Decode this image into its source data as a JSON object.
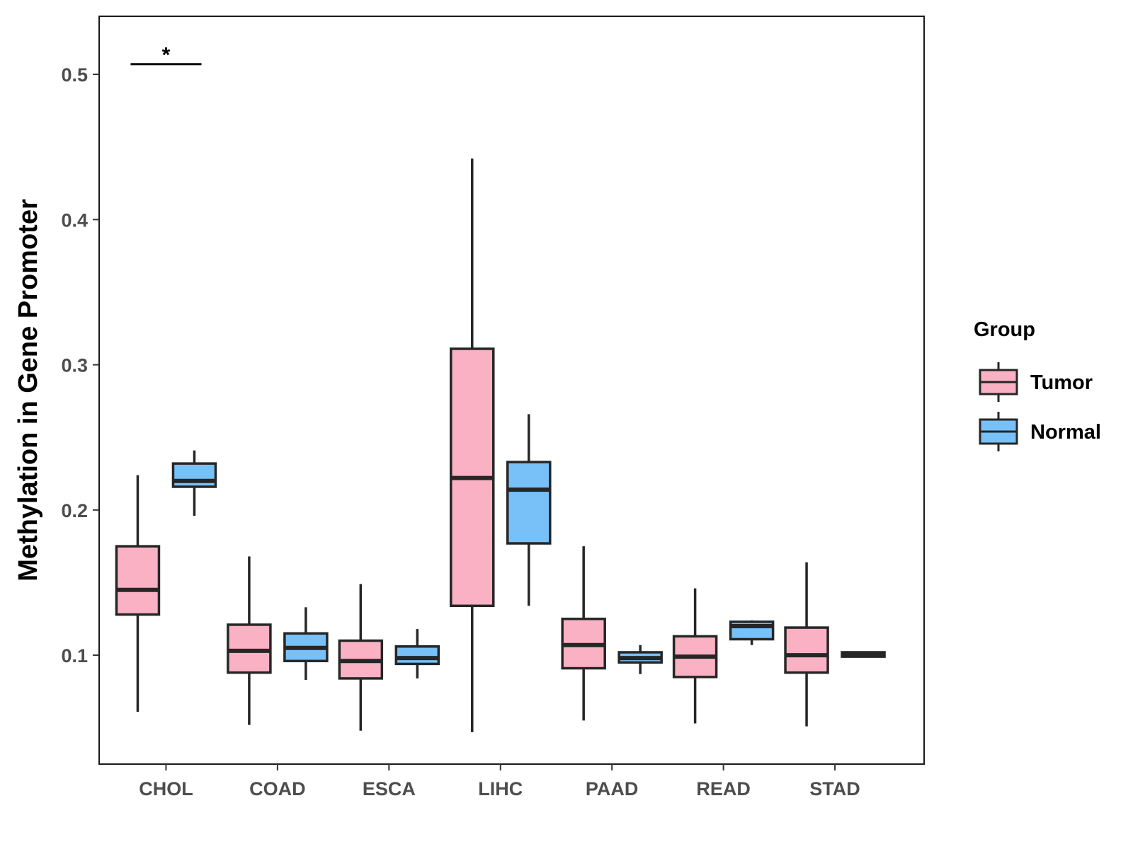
{
  "chart_data": {
    "type": "box",
    "title": "",
    "xlabel": "",
    "ylabel": "Methylation in Gene Promoter",
    "ylim": [
      0.025,
      0.54
    ],
    "yticks": [
      0.1,
      0.2,
      0.3,
      0.4,
      0.5
    ],
    "ytick_labels": [
      "0.1",
      "0.2",
      "0.3",
      "0.4",
      "0.5"
    ],
    "grid": false,
    "legend": {
      "title": "Group",
      "position": "right",
      "entries": [
        {
          "name": "Tumor",
          "color": "#fbb1c4"
        },
        {
          "name": "Normal",
          "color": "#78c1f8"
        }
      ]
    },
    "categories": [
      "CHOL",
      "COAD",
      "ESCA",
      "LIHC",
      "PAAD",
      "READ",
      "STAD"
    ],
    "series": [
      {
        "name": "Tumor",
        "color": "#fbb1c4",
        "boxes": [
          {
            "min": 0.061,
            "q1": 0.128,
            "median": 0.145,
            "q3": 0.175,
            "max": 0.224
          },
          {
            "min": 0.052,
            "q1": 0.088,
            "median": 0.103,
            "q3": 0.121,
            "max": 0.168
          },
          {
            "min": 0.048,
            "q1": 0.084,
            "median": 0.096,
            "q3": 0.11,
            "max": 0.149
          },
          {
            "min": 0.047,
            "q1": 0.134,
            "median": 0.222,
            "q3": 0.311,
            "max": 0.442
          },
          {
            "min": 0.055,
            "q1": 0.091,
            "median": 0.107,
            "q3": 0.125,
            "max": 0.175
          },
          {
            "min": 0.053,
            "q1": 0.085,
            "median": 0.099,
            "q3": 0.113,
            "max": 0.146
          },
          {
            "min": 0.051,
            "q1": 0.088,
            "median": 0.1,
            "q3": 0.119,
            "max": 0.164
          }
        ]
      },
      {
        "name": "Normal",
        "color": "#78c1f8",
        "boxes": [
          {
            "min": 0.196,
            "q1": 0.216,
            "median": 0.22,
            "q3": 0.232,
            "max": 0.241
          },
          {
            "min": 0.083,
            "q1": 0.096,
            "median": 0.105,
            "q3": 0.115,
            "max": 0.133
          },
          {
            "min": 0.084,
            "q1": 0.094,
            "median": 0.098,
            "q3": 0.106,
            "max": 0.118
          },
          {
            "min": 0.134,
            "q1": 0.177,
            "median": 0.214,
            "q3": 0.233,
            "max": 0.266
          },
          {
            "min": 0.087,
            "q1": 0.095,
            "median": 0.098,
            "q3": 0.102,
            "max": 0.107
          },
          {
            "min": 0.107,
            "q1": 0.111,
            "median": 0.12,
            "q3": 0.123,
            "max": 0.124
          },
          {
            "min": 0.099,
            "q1": 0.099,
            "median": 0.101,
            "q3": 0.102,
            "max": 0.102
          }
        ]
      }
    ],
    "annotations": [
      {
        "text": "*",
        "category": "CHOL",
        "y": 0.507
      }
    ]
  }
}
